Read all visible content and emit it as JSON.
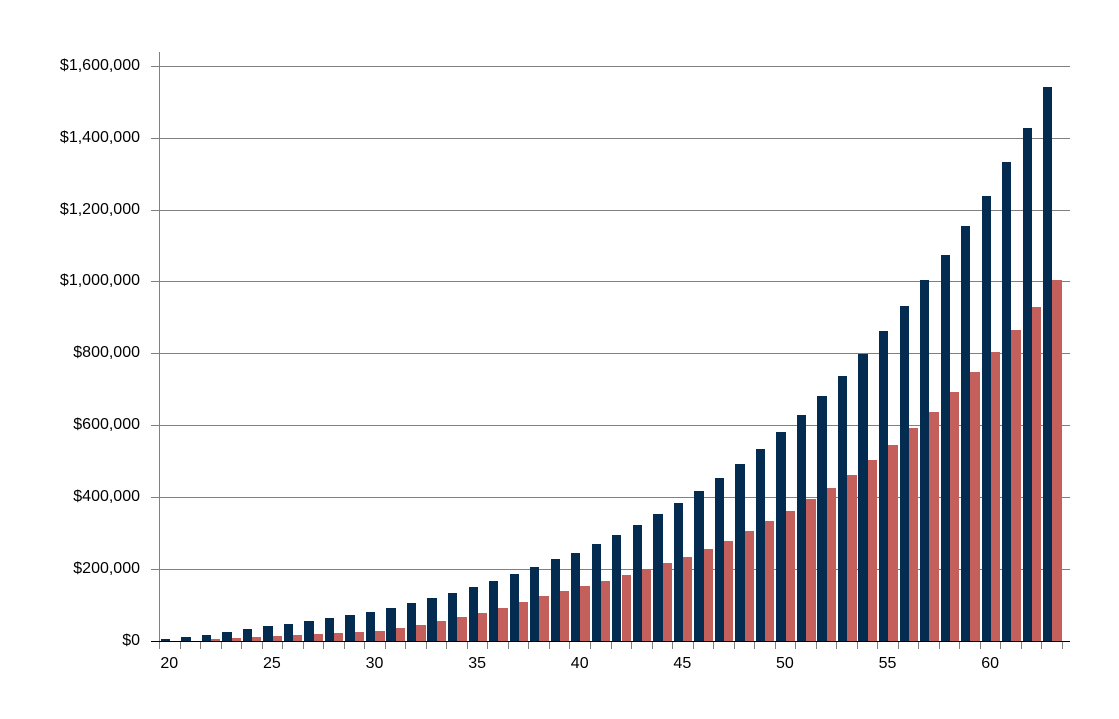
{
  "chart_data": {
    "type": "bar",
    "title": "",
    "xlabel": "",
    "ylabel": "",
    "grid": true,
    "legend": "none",
    "categories": [
      20,
      21,
      22,
      23,
      24,
      25,
      26,
      27,
      28,
      29,
      30,
      31,
      32,
      33,
      34,
      35,
      36,
      37,
      38,
      39,
      40,
      41,
      42,
      43,
      44,
      45,
      46,
      47,
      48,
      49,
      50,
      51,
      52,
      53,
      54,
      55,
      56,
      57,
      58,
      59,
      60,
      61,
      62,
      63
    ],
    "series": [
      {
        "name": "navy-series",
        "color": "#042c50",
        "values": [
          5500,
          11500,
          18000,
          25000,
          32500,
          40500,
          47500,
          55500,
          64000,
          72500,
          81000,
          92500,
          105000,
          119000,
          134000,
          150000,
          168000,
          187000,
          207000,
          227000,
          246000,
          270000,
          295000,
          322000,
          352000,
          383000,
          417000,
          454000,
          493000,
          535000,
          580000,
          629000,
          681000,
          738000,
          798000,
          863000,
          933000,
          1003000,
          1073000,
          1153000,
          1239000,
          1331000,
          1428000,
          1540000
        ]
      },
      {
        "name": "salmon-series",
        "color": "#c4605c",
        "values": [
          0,
          0,
          6000,
          8000,
          10000,
          13000,
          16000,
          19000,
          23000,
          26000,
          29000,
          35000,
          44000,
          55000,
          66000,
          79000,
          93000,
          108000,
          124000,
          138000,
          152000,
          167000,
          183000,
          200000,
          217000,
          235000,
          255000,
          278000,
          305000,
          333000,
          361000,
          395000,
          426000,
          461000,
          504000,
          544000,
          591000,
          637000,
          692000,
          748000,
          804000,
          866000,
          930000,
          1005000
        ]
      }
    ],
    "ylim": [
      0,
      1600000
    ],
    "y_ticks": [
      0,
      200000,
      400000,
      600000,
      800000,
      1000000,
      1200000,
      1400000,
      1600000
    ],
    "y_tick_labels": [
      "$0",
      "$200,000",
      "$400,000",
      "$600,000",
      "$800,000",
      "$1,000,000",
      "$1,200,000",
      "$1,400,000",
      "$1,600,000"
    ],
    "x_tick_ages": [
      20,
      25,
      30,
      35,
      40,
      45,
      50,
      55,
      60
    ],
    "x_tick_labels": [
      "20",
      "25",
      "30",
      "35",
      "40",
      "45",
      "50",
      "55",
      "60"
    ]
  },
  "colors": {
    "background": "#ffffff",
    "bar_navy": "#042c50",
    "bar_salmon": "#c4605c",
    "gridline": "#808080",
    "y_axis_line": "#808080",
    "x_axis_line": "#000000",
    "tick": "#808080",
    "text": "#000000"
  }
}
